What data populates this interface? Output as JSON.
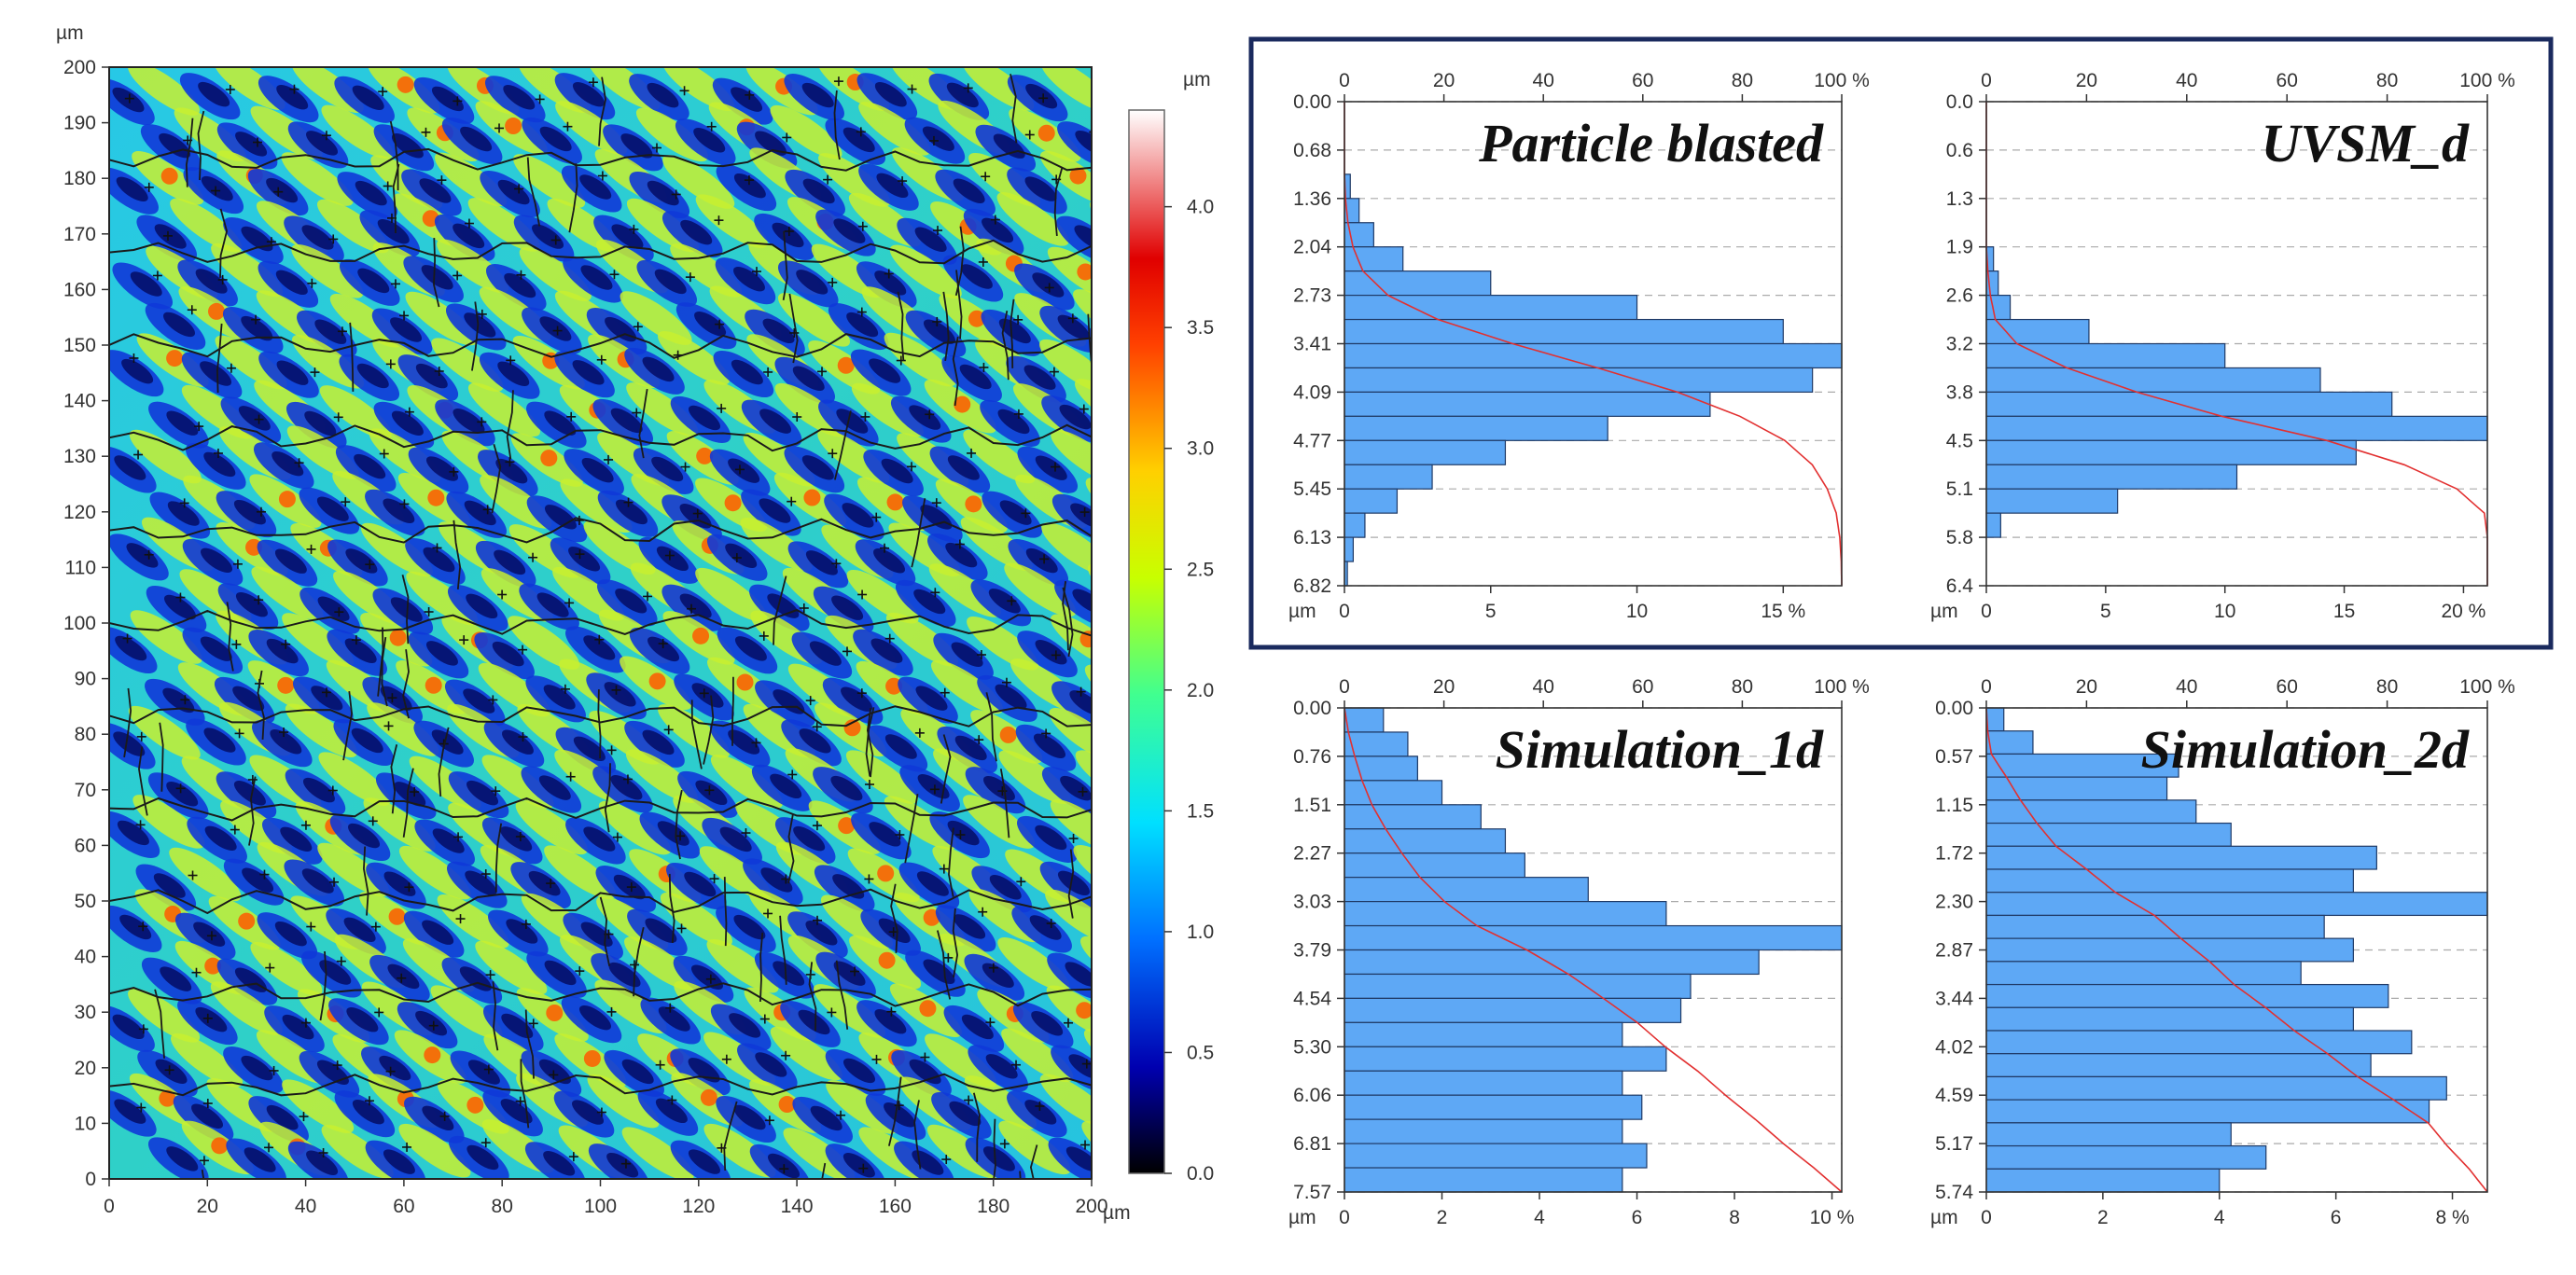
{
  "height_map": {
    "x_ticks": [
      "0",
      "20",
      "40",
      "60",
      "80",
      "100",
      "120",
      "140",
      "160",
      "180",
      "200"
    ],
    "y_ticks": [
      "0",
      "10",
      "20",
      "30",
      "40",
      "50",
      "60",
      "70",
      "80",
      "90",
      "100",
      "110",
      "120",
      "130",
      "140",
      "150",
      "160",
      "170",
      "180",
      "190",
      "200"
    ],
    "x_unit": "µm",
    "y_unit": "µm",
    "colorbar_unit": "µm",
    "colorbar_ticks": [
      "0.0",
      "0.5",
      "1.0",
      "1.5",
      "2.0",
      "2.5",
      "3.0",
      "3.5",
      "4.0"
    ],
    "colorbar_range": [
      0,
      4.4
    ]
  },
  "chart_data": [
    {
      "type": "bar",
      "title": "Particle blasted",
      "orientation": "horizontal",
      "y_unit": "µm",
      "y_ticks": [
        "0.00",
        "0.68",
        "1.36",
        "2.04",
        "2.73",
        "3.41",
        "4.09",
        "4.77",
        "5.45",
        "6.13",
        "6.82"
      ],
      "x_ticks": [
        "0",
        "5",
        "10",
        "15 %"
      ],
      "x_max": 17,
      "top_ticks": [
        "0",
        "20",
        "40",
        "60",
        "80",
        "100 %"
      ],
      "values": [
        0,
        0,
        0,
        0.2,
        0.5,
        1,
        2,
        5,
        10,
        15,
        17,
        16,
        12.5,
        9,
        5.5,
        3,
        1.8,
        0.7,
        0.3,
        0.1
      ],
      "cumulative_curve": true
    },
    {
      "type": "bar",
      "title": "UVSM_d",
      "orientation": "horizontal",
      "y_unit": "µm",
      "y_ticks": [
        "0.0",
        "0.6",
        "1.3",
        "1.9",
        "2.6",
        "3.2",
        "3.8",
        "4.5",
        "5.1",
        "5.8",
        "6.4"
      ],
      "x_ticks": [
        "0",
        "5",
        "10",
        "15",
        "20 %"
      ],
      "x_max": 21,
      "top_ticks": [
        "0",
        "20",
        "40",
        "60",
        "80",
        "100 %"
      ],
      "values": [
        0,
        0,
        0,
        0,
        0,
        0,
        0.3,
        0.5,
        1,
        4.3,
        10,
        14,
        17,
        21,
        15.5,
        10.5,
        5.5,
        0.6,
        0,
        0
      ],
      "cumulative_curve": true
    },
    {
      "type": "bar",
      "title": "Simulation_1d",
      "orientation": "horizontal",
      "y_unit": "µm",
      "y_ticks": [
        "0.00",
        "0.76",
        "1.51",
        "2.27",
        "3.03",
        "3.79",
        "4.54",
        "5.30",
        "6.06",
        "6.81",
        "7.57"
      ],
      "x_ticks": [
        "0",
        "2",
        "4",
        "6",
        "8",
        "10 %"
      ],
      "x_max": 10.2,
      "top_ticks": [
        "0",
        "20",
        "40",
        "60",
        "80",
        "100 %"
      ],
      "values": [
        0.8,
        1.3,
        1.5,
        2,
        2.8,
        3.3,
        3.7,
        5,
        6.6,
        10.2,
        8.5,
        7.1,
        6.9,
        5.7,
        6.6,
        5.7,
        6.1,
        5.7,
        6.2,
        5.7
      ],
      "cumulative_curve": true
    },
    {
      "type": "bar",
      "title": "Simulation_2d",
      "orientation": "horizontal",
      "y_unit": "µm",
      "y_ticks": [
        "0.00",
        "0.57",
        "1.15",
        "1.72",
        "2.30",
        "2.87",
        "3.44",
        "4.02",
        "4.59",
        "5.17",
        "5.74"
      ],
      "x_ticks": [
        "0",
        "2",
        "4",
        "6",
        "8 %"
      ],
      "x_max": 8.6,
      "top_ticks": [
        "0",
        "20",
        "40",
        "60",
        "80",
        "100 %"
      ],
      "values": [
        0.3,
        0.8,
        3.3,
        3.1,
        3.6,
        4.2,
        6.7,
        6.3,
        8.6,
        5.8,
        6.3,
        5.4,
        6.9,
        6.3,
        7.3,
        6.6,
        7.9,
        7.6,
        4.2,
        4.8,
        4
      ],
      "cumulative_curve": true
    }
  ]
}
